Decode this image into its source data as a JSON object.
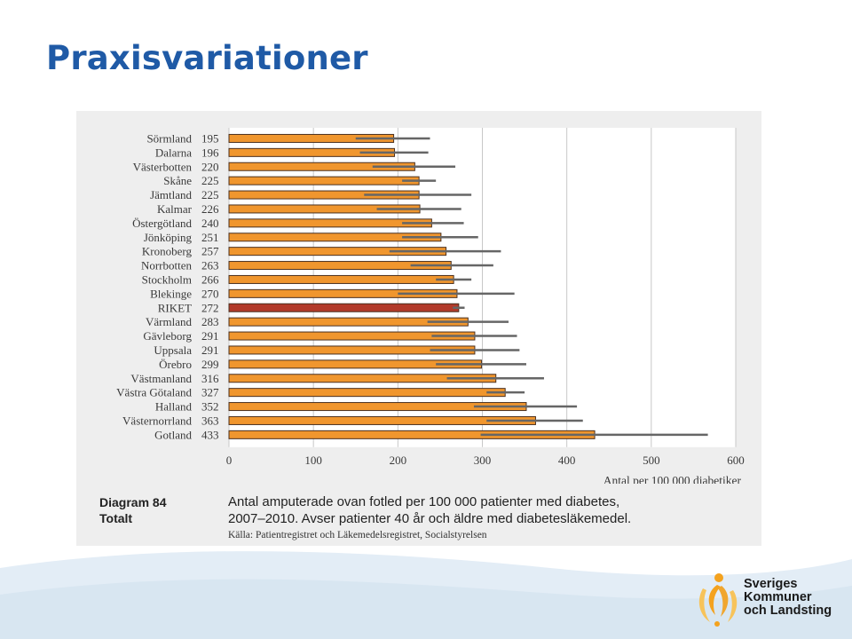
{
  "slide": {
    "title": "Praxisvariationer"
  },
  "caption": {
    "label_line1": "Diagram 84",
    "label_line2": "Totalt",
    "text_line1": "Antal amputerade ovan fotled per 100 000 patienter med diabetes,",
    "text_line2": "2007–2010. Avser patienter 40 år och äldre med diabetesläkemedel.",
    "source": "Källa: Patientregistret och Läkemedelsregistret, Socialstyrelsen"
  },
  "logo": {
    "line1": "Sveriges",
    "line2": "Kommuner",
    "line3": "och Landsting"
  },
  "colors": {
    "bar": "#f0962e",
    "highlight_bar": "#b23a2a",
    "bar_outline": "#4a3020",
    "error_bar": "#666666",
    "title": "#1f5aa6"
  },
  "chart_data": {
    "type": "bar",
    "orientation": "horizontal",
    "xlabel": "Antal per 100 000 diabetiker",
    "xlim": [
      0,
      600
    ],
    "xticks": [
      0,
      100,
      200,
      300,
      400,
      500,
      600
    ],
    "grid": "vertical",
    "categories": [
      "Sörmland",
      "Dalarna",
      "Västerbotten",
      "Skåne",
      "Jämtland",
      "Kalmar",
      "Östergötland",
      "Jönköping",
      "Kronoberg",
      "Norrbotten",
      "Stockholm",
      "Blekinge",
      "RIKET",
      "Värmland",
      "Gävleborg",
      "Uppsala",
      "Örebro",
      "Västmanland",
      "Västra Götaland",
      "Halland",
      "Västernorrland",
      "Gotland"
    ],
    "values": [
      195,
      196,
      220,
      225,
      225,
      226,
      240,
      251,
      257,
      263,
      266,
      270,
      272,
      283,
      291,
      291,
      299,
      316,
      327,
      352,
      363,
      433
    ],
    "value_labels": [
      "195",
      "196",
      "220",
      "225",
      "225",
      "226",
      "240",
      "251",
      "257",
      "263",
      "266",
      "270",
      "272",
      "283",
      "291",
      "291",
      "299",
      "316",
      "327",
      "352",
      "363",
      "433"
    ],
    "ci_low": [
      150,
      155,
      170,
      205,
      160,
      175,
      205,
      205,
      190,
      215,
      245,
      200,
      265,
      235,
      240,
      238,
      245,
      258,
      305,
      290,
      305,
      298
    ],
    "ci_high": [
      238,
      236,
      268,
      245,
      287,
      275,
      278,
      295,
      322,
      313,
      287,
      338,
      279,
      331,
      341,
      344,
      352,
      373,
      350,
      412,
      419,
      567
    ],
    "highlight": "RIKET"
  }
}
